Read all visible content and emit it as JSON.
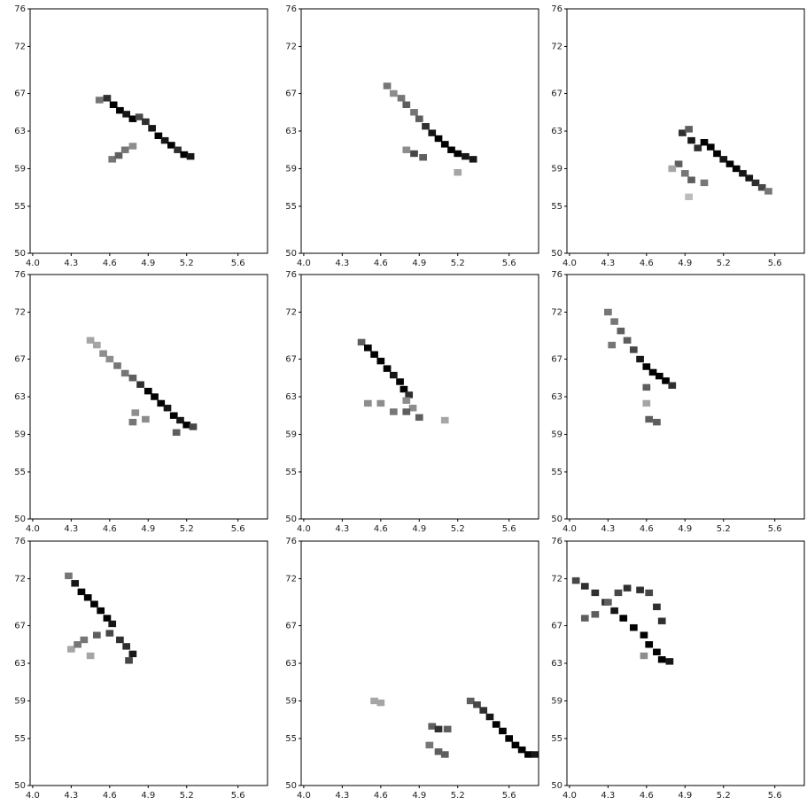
{
  "chart_data": [
    {
      "type": "heatmap",
      "xlim": [
        3.98,
        5.83
      ],
      "ylim": [
        50,
        76
      ],
      "xticks": [
        {
          "value": 4,
          "label": "4.0"
        },
        4.3,
        4.6,
        4.9,
        5.2,
        5.6
      ],
      "yticks": [
        50,
        55,
        59,
        63,
        67,
        72,
        76
      ],
      "x": [
        4.52,
        4.58,
        4.63,
        4.68,
        4.73,
        4.78,
        4.83,
        4.88,
        4.93,
        4.98,
        5.03,
        5.08,
        5.13,
        5.18,
        5.23,
        4.62,
        4.67,
        4.72,
        4.78
      ],
      "y": [
        66.3,
        66.5,
        65.8,
        65.2,
        64.8,
        64.3,
        64.5,
        64,
        63.3,
        62.5,
        62,
        61.5,
        61,
        60.5,
        60.3,
        60,
        60.4,
        61,
        61.4
      ],
      "values": [
        0.5,
        0.8,
        1,
        1,
        0.9,
        1,
        0.7,
        0.8,
        0.9,
        1,
        0.9,
        1,
        0.8,
        1,
        0.9,
        0.5,
        0.6,
        0.5,
        0.4
      ]
    },
    {
      "type": "heatmap",
      "xlim": [
        3.98,
        5.83
      ],
      "ylim": [
        50,
        76
      ],
      "xticks": [
        {
          "value": 4,
          "label": "4.0"
        },
        4.3,
        4.6,
        4.9,
        5.2,
        5.6
      ],
      "yticks": [
        50,
        55,
        59,
        63,
        67,
        72,
        76
      ],
      "x": [
        4.65,
        4.7,
        4.76,
        4.8,
        4.86,
        4.9,
        4.95,
        5,
        5.05,
        5.1,
        5.15,
        5.2,
        5.26,
        5.32,
        4.8,
        4.86,
        4.93,
        5.2
      ],
      "y": [
        67.8,
        67,
        66.5,
        65.8,
        65,
        64.3,
        63.5,
        62.8,
        62.2,
        61.6,
        61,
        60.6,
        60.3,
        60,
        61,
        60.6,
        60.2,
        58.6
      ],
      "values": [
        0.5,
        0.4,
        0.5,
        0.6,
        0.5,
        0.6,
        0.8,
        0.9,
        1,
        1,
        1,
        1,
        0.9,
        0.9,
        0.4,
        0.7,
        0.6,
        0.3
      ]
    },
    {
      "type": "heatmap",
      "xlim": [
        3.98,
        5.83
      ],
      "ylim": [
        50,
        76
      ],
      "xticks": [
        {
          "value": 4,
          "label": "4.0"
        },
        4.3,
        4.6,
        4.9,
        5.2,
        5.6
      ],
      "yticks": [
        50,
        55,
        59,
        63,
        67,
        72,
        76
      ],
      "x": [
        4.88,
        4.93,
        4.95,
        5,
        5.05,
        5.1,
        5.15,
        5.2,
        5.25,
        5.3,
        5.35,
        5.4,
        5.45,
        5.5,
        5.55,
        4.85,
        4.9,
        4.95,
        5.05,
        4.8,
        4.93
      ],
      "y": [
        62.8,
        63.2,
        62,
        61.2,
        61.8,
        61.3,
        60.6,
        60,
        59.5,
        59,
        58.5,
        58,
        57.5,
        57,
        56.6,
        59.5,
        58.5,
        57.8,
        57.5,
        59,
        56
      ],
      "values": [
        0.8,
        0.6,
        0.9,
        0.8,
        1,
        1,
        1,
        0.9,
        1,
        1,
        0.9,
        0.9,
        0.8,
        0.7,
        0.5,
        0.6,
        0.5,
        0.6,
        0.5,
        0.3,
        0.2
      ]
    },
    {
      "type": "heatmap",
      "xlim": [
        3.98,
        5.83
      ],
      "ylim": [
        50,
        76
      ],
      "xticks": [
        {
          "value": 4,
          "label": "4.0"
        },
        4.3,
        4.6,
        4.9,
        5.2,
        5.6
      ],
      "yticks": [
        50,
        55,
        59,
        63,
        67,
        72,
        76
      ],
      "x": [
        4.45,
        4.5,
        4.55,
        4.6,
        4.66,
        4.72,
        4.78,
        4.84,
        4.9,
        4.95,
        5,
        5.05,
        5.1,
        5.15,
        5.2,
        5.25,
        4.8,
        4.78,
        4.88,
        5.12
      ],
      "y": [
        69,
        68.5,
        67.6,
        67,
        66.3,
        65.5,
        65,
        64.3,
        63.6,
        63,
        62.3,
        61.8,
        61,
        60.5,
        60,
        59.8,
        61.3,
        60.3,
        60.6,
        59.2
      ],
      "values": [
        0.3,
        0.3,
        0.4,
        0.4,
        0.5,
        0.5,
        0.6,
        0.8,
        1,
        1,
        1,
        0.9,
        1,
        0.9,
        1,
        0.7,
        0.4,
        0.5,
        0.4,
        0.6
      ]
    },
    {
      "type": "heatmap",
      "xlim": [
        3.98,
        5.83
      ],
      "ylim": [
        50,
        76
      ],
      "xticks": [
        {
          "value": 4,
          "label": "4.0"
        },
        4.3,
        4.6,
        4.9,
        5.2,
        5.6
      ],
      "yticks": [
        50,
        55,
        59,
        63,
        67,
        72,
        76
      ],
      "x": [
        4.45,
        4.5,
        4.55,
        4.6,
        4.65,
        4.7,
        4.75,
        4.78,
        4.82,
        4.8,
        4.85,
        4.9,
        4.5,
        4.6,
        4.7,
        4.8,
        5.1
      ],
      "y": [
        68.8,
        68.2,
        67.5,
        66.8,
        66,
        65.3,
        64.6,
        63.8,
        63.2,
        62.6,
        61.8,
        60.8,
        62.3,
        62.3,
        61.4,
        61.4,
        60.5
      ],
      "values": [
        0.6,
        1,
        1,
        1,
        1,
        0.9,
        1,
        1,
        0.8,
        0.4,
        0.4,
        0.6,
        0.4,
        0.4,
        0.5,
        0.6,
        0.3
      ]
    },
    {
      "type": "heatmap",
      "xlim": [
        3.98,
        5.83
      ],
      "ylim": [
        50,
        76
      ],
      "xticks": [
        {
          "value": 4,
          "label": "4.0"
        },
        4.3,
        4.6,
        4.9,
        5.2,
        5.6
      ],
      "yticks": [
        50,
        55,
        59,
        63,
        67,
        72,
        76
      ],
      "x": [
        4.3,
        4.35,
        4.4,
        4.45,
        4.5,
        4.55,
        4.6,
        4.65,
        4.7,
        4.75,
        4.8,
        4.33,
        4.6,
        4.6,
        4.62,
        4.68
      ],
      "y": [
        72,
        71,
        70,
        69,
        68,
        67,
        66.2,
        65.6,
        65.2,
        64.7,
        64.2,
        68.5,
        64,
        62.3,
        60.6,
        60.3
      ],
      "values": [
        0.5,
        0.5,
        0.6,
        0.6,
        0.7,
        0.9,
        1,
        1,
        1,
        1,
        0.8,
        0.5,
        0.6,
        0.3,
        0.6,
        0.6
      ]
    },
    {
      "type": "heatmap",
      "xlim": [
        3.98,
        5.83
      ],
      "ylim": [
        50,
        76
      ],
      "xticks": [
        {
          "value": 4,
          "label": "4.0"
        },
        4.3,
        4.6,
        4.9,
        5.2,
        5.6
      ],
      "yticks": [
        50,
        55,
        59,
        63,
        67,
        72,
        76
      ],
      "x": [
        4.28,
        4.33,
        4.38,
        4.43,
        4.48,
        4.53,
        4.58,
        4.62,
        4.4,
        4.5,
        4.6,
        4.68,
        4.73,
        4.78,
        4.75,
        4.3,
        4.45,
        4.35
      ],
      "y": [
        72.3,
        71.5,
        70.6,
        70,
        69.3,
        68.6,
        67.8,
        67.2,
        65.5,
        66,
        66.2,
        65.5,
        64.8,
        64,
        63.3,
        64.5,
        63.8,
        65
      ],
      "values": [
        0.5,
        0.9,
        1,
        1,
        1,
        1,
        1,
        0.9,
        0.5,
        0.6,
        0.7,
        0.8,
        0.8,
        0.9,
        0.7,
        0.3,
        0.3,
        0.5
      ]
    },
    {
      "type": "heatmap",
      "xlim": [
        3.98,
        5.83
      ],
      "ylim": [
        50,
        76
      ],
      "xticks": [
        {
          "value": 4,
          "label": "4.0"
        },
        4.3,
        4.6,
        4.9,
        5.2,
        5.6
      ],
      "yticks": [
        50,
        55,
        59,
        63,
        67,
        72,
        76
      ],
      "x": [
        4.55,
        4.6,
        5.3,
        5.35,
        5.4,
        5.45,
        5.5,
        5.55,
        5.6,
        5.65,
        5.7,
        5.75,
        5.8,
        5,
        5.05,
        5.12,
        4.98,
        5.05,
        5.1
      ],
      "y": [
        59,
        58.8,
        59,
        58.6,
        58,
        57.3,
        56.5,
        55.8,
        55,
        54.3,
        53.8,
        53.3,
        53.3,
        56.3,
        56,
        56,
        54.3,
        53.6,
        53.3
      ],
      "values": [
        0.3,
        0.3,
        0.6,
        0.7,
        0.8,
        0.9,
        1,
        1,
        1,
        1,
        1,
        1,
        0.9,
        0.6,
        0.8,
        0.6,
        0.5,
        0.6,
        0.6
      ]
    },
    {
      "type": "heatmap",
      "xlim": [
        3.98,
        5.83
      ],
      "ylim": [
        50,
        76
      ],
      "xticks": [
        {
          "value": 4,
          "label": "4.0"
        },
        4.3,
        4.6,
        4.9,
        5.2,
        5.6
      ],
      "yticks": [
        50,
        55,
        59,
        63,
        67,
        72,
        76
      ],
      "x": [
        4.05,
        4.12,
        4.2,
        4.28,
        4.35,
        4.42,
        4.5,
        4.58,
        4.62,
        4.68,
        4.72,
        4.78,
        4.12,
        4.2,
        4.3,
        4.38,
        4.45,
        4.55,
        4.62,
        4.68,
        4.72,
        4.58
      ],
      "y": [
        71.8,
        71.2,
        70.5,
        69.5,
        68.6,
        67.8,
        66.8,
        66,
        65,
        64.2,
        63.4,
        63.2,
        67.8,
        68.2,
        69.5,
        70.5,
        71,
        70.8,
        70.5,
        69,
        67.5,
        63.8
      ],
      "values": [
        0.7,
        0.8,
        0.8,
        0.8,
        0.9,
        1,
        1,
        1,
        1,
        1,
        1,
        0.9,
        0.6,
        0.6,
        0.6,
        0.7,
        0.8,
        0.8,
        0.7,
        0.8,
        0.8,
        0.4
      ]
    }
  ]
}
